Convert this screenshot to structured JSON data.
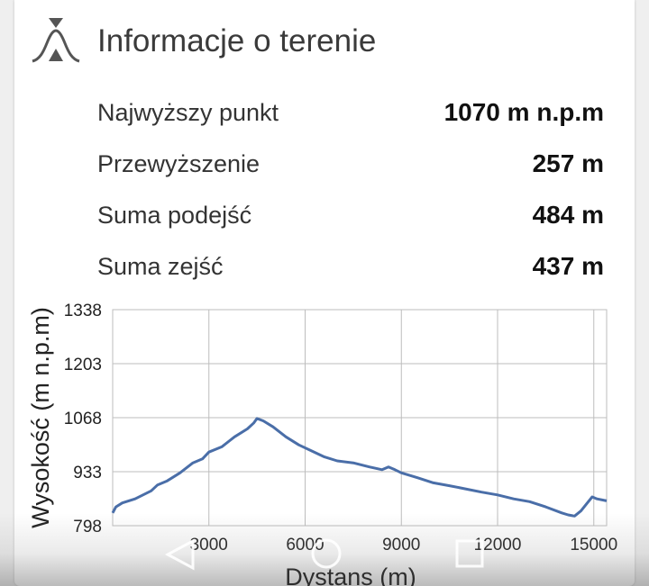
{
  "header": {
    "title": "Informacje o terenie",
    "icon": "terrain-icon"
  },
  "stats": [
    {
      "label": "Najwyższy punkt",
      "value": "1070 m n.p.m"
    },
    {
      "label": "Przewyższenie",
      "value": "257 m"
    },
    {
      "label": "Suma podejść",
      "value": "484 m"
    },
    {
      "label": "Suma zejść",
      "value": "437 m"
    }
  ],
  "chart_data": {
    "type": "line",
    "xlabel": "Dystans (m)",
    "ylabel": "Wysokość (m n.p.m)",
    "xlim": [
      0,
      15400
    ],
    "ylim": [
      798,
      1338
    ],
    "x_ticks": [
      3000,
      6000,
      9000,
      12000,
      15000
    ],
    "y_ticks": [
      798,
      933,
      1068,
      1203,
      1338
    ],
    "grid": true,
    "line_color": "#4a6ea8",
    "series": [
      {
        "x": [
          0,
          100,
          300,
          700,
          1200,
          1400,
          1700,
          2100,
          2500,
          2800,
          3000,
          3400,
          3800,
          4200,
          4400,
          4500,
          4700,
          5000,
          5400,
          5800,
          6200,
          6600,
          7000,
          7500,
          8000,
          8400,
          8600,
          8800,
          9000,
          9500,
          10000,
          10500,
          11000,
          11500,
          12000,
          12500,
          13000,
          13500,
          14000,
          14200,
          14400,
          14600,
          14800,
          14950,
          15100,
          15400
        ],
        "y": [
          830,
          845,
          855,
          865,
          885,
          900,
          910,
          930,
          955,
          965,
          982,
          995,
          1020,
          1040,
          1055,
          1066,
          1060,
          1045,
          1020,
          1000,
          985,
          970,
          960,
          955,
          945,
          938,
          945,
          938,
          930,
          918,
          905,
          898,
          890,
          882,
          875,
          865,
          858,
          845,
          830,
          825,
          822,
          835,
          855,
          870,
          865,
          860
        ]
      }
    ]
  }
}
